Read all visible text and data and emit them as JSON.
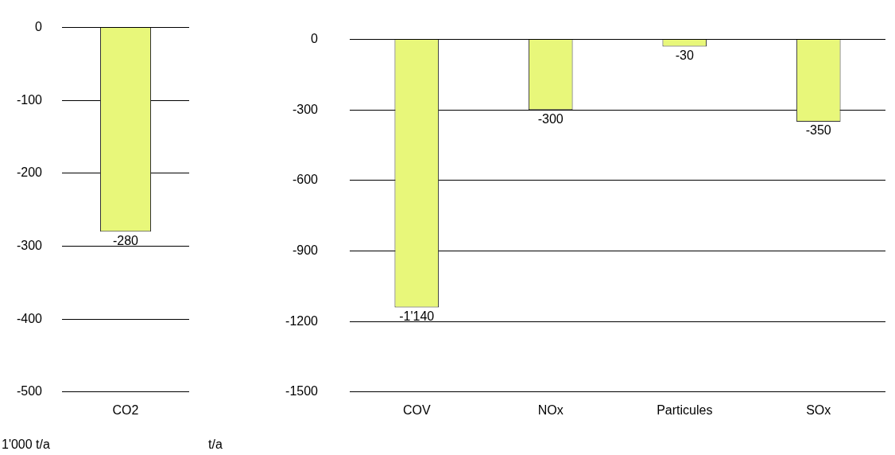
{
  "chart_data": [
    {
      "type": "bar",
      "categories": [
        "CO2"
      ],
      "values": [
        -280
      ],
      "color": "#e8f77a",
      "ylim": [
        -500,
        0
      ],
      "yticks": [
        0,
        -100,
        -200,
        -300,
        -400,
        -500
      ],
      "grid": "y",
      "ylabel": "1'000 t/a",
      "value_labels": [
        "-280"
      ]
    },
    {
      "type": "bar",
      "categories": [
        "COV",
        "NOx",
        "Particules",
        "SOx"
      ],
      "values": [
        -1140,
        -300,
        -30,
        -350
      ],
      "color": "#e8f77a",
      "ylim": [
        -1500,
        0
      ],
      "yticks": [
        0,
        -300,
        -600,
        -900,
        -1200,
        -1500
      ],
      "grid": "y",
      "ylabel": "t/a",
      "value_labels": [
        "-1'140",
        "-300",
        "-30",
        "-350"
      ]
    }
  ]
}
